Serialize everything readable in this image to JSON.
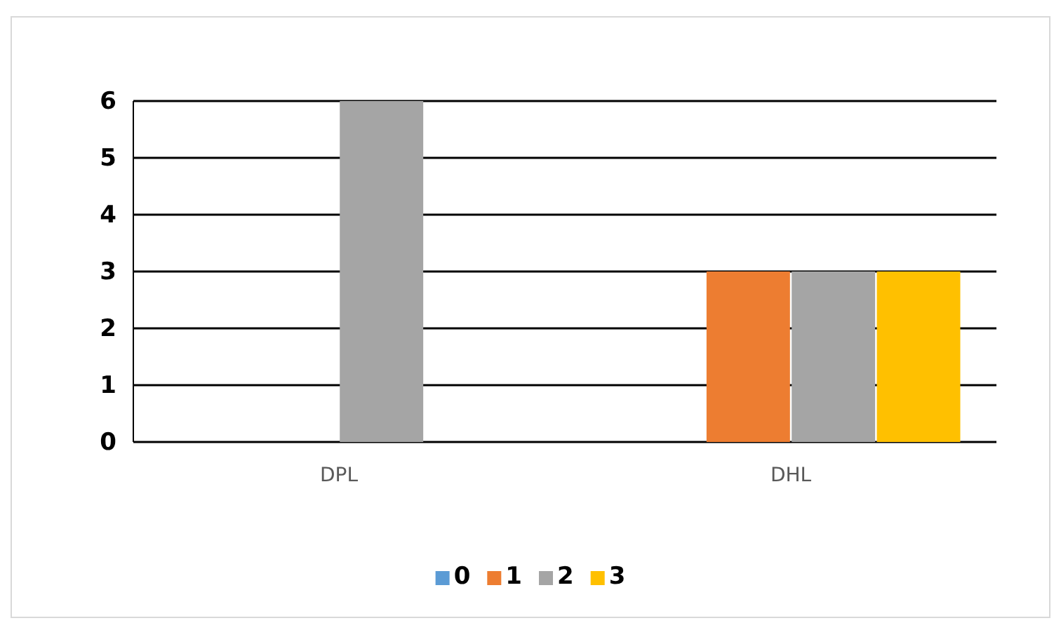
{
  "chart_data": {
    "type": "bar",
    "categories": [
      "DPL",
      "DHL"
    ],
    "series": [
      {
        "name": "0",
        "color": "#5b9bd5",
        "values": [
          0,
          0
        ]
      },
      {
        "name": "1",
        "color": "#ed7d31",
        "values": [
          0,
          3
        ]
      },
      {
        "name": "2",
        "color": "#a5a5a5",
        "values": [
          6,
          3
        ]
      },
      {
        "name": "3",
        "color": "#ffc000",
        "values": [
          0,
          3
        ]
      }
    ],
    "ylim": [
      0,
      6
    ],
    "yticks": [
      0,
      1,
      2,
      3,
      4,
      5,
      6
    ],
    "grid": "y",
    "legend": "bottom"
  }
}
